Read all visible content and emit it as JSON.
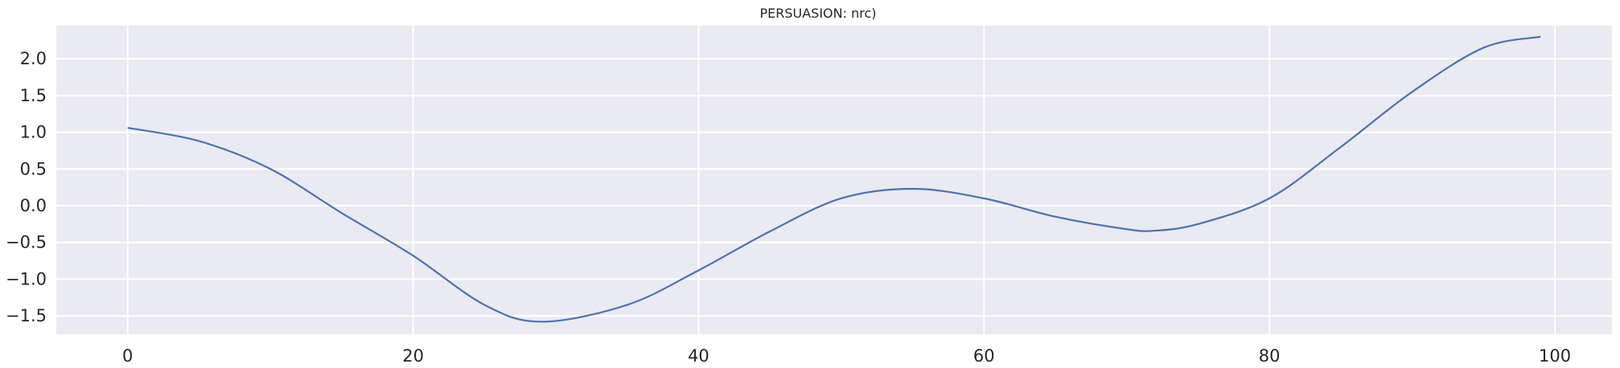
{
  "chart_data": {
    "type": "line",
    "title": "PERSUASION: nrc)",
    "xlabel": "",
    "ylabel": "",
    "xlim": [
      -5,
      104
    ],
    "ylim": [
      -1.75,
      2.45
    ],
    "x_ticks": [
      0,
      20,
      40,
      60,
      80,
      100
    ],
    "y_ticks": [
      -1.5,
      -1.0,
      -0.5,
      0.0,
      0.5,
      1.0,
      1.5,
      2.0
    ],
    "x_tick_labels": [
      "0",
      "20",
      "40",
      "60",
      "80",
      "100"
    ],
    "y_tick_labels": [
      "−1.5",
      "−1.0",
      "−0.5",
      "0.0",
      "0.5",
      "1.0",
      "1.5",
      "2.0"
    ],
    "grid": true,
    "background_color": "#eaeaf2",
    "grid_color": "#ffffff",
    "series": [
      {
        "color": "#4c72b0",
        "x": [
          0,
          5,
          10,
          15,
          20,
          25,
          29,
          35,
          40,
          45,
          50,
          55,
          60,
          65,
          70,
          72,
          75,
          80,
          85,
          90,
          95,
          99
        ],
        "y": [
          1.06,
          0.88,
          0.5,
          -0.1,
          -0.68,
          -1.35,
          -1.58,
          -1.35,
          -0.88,
          -0.35,
          0.1,
          0.23,
          0.1,
          -0.15,
          -0.32,
          -0.34,
          -0.25,
          0.1,
          0.8,
          1.55,
          2.15,
          2.3
        ]
      }
    ]
  }
}
